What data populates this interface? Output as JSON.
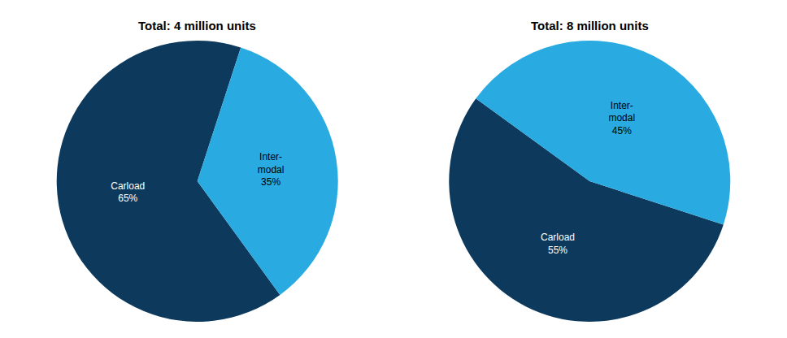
{
  "chart_data": [
    {
      "type": "pie",
      "title": "Total: 4 million units",
      "categories": [
        "Carload\n65%",
        "Inter-\nmodal\n35%"
      ],
      "values": [
        65,
        35
      ],
      "colors": [
        "#0D3A5C",
        "#29ABE2"
      ]
    },
    {
      "type": "pie",
      "title": "Total: 8 million units",
      "categories": [
        "Carload\n55%",
        "Inter-\nmodal\n45%"
      ],
      "values": [
        55,
        45
      ],
      "colors": [
        "#0D3A5C",
        "#29ABE2"
      ]
    }
  ]
}
